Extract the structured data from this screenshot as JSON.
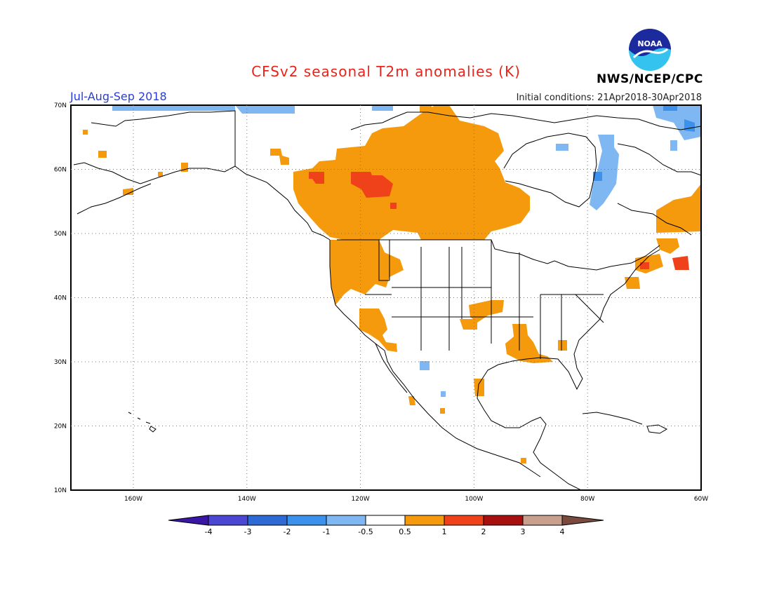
{
  "header": {
    "title": "CFSv2 seasonal T2m anomalies (K)",
    "season": "Jul-Aug-Sep 2018",
    "initial_conditions": "Initial conditions: 21Apr2018-30Apr2018",
    "agency": "NWS/NCEP/CPC",
    "logo_text": "NOAA"
  },
  "map": {
    "lon_range": [
      -171,
      -60
    ],
    "lat_range": [
      10,
      70
    ],
    "lat_labels": [
      "10N",
      "20N",
      "30N",
      "40N",
      "50N",
      "60N",
      "70N"
    ],
    "lon_labels": [
      "160W",
      "140W",
      "120W",
      "100W",
      "80W",
      "60W"
    ],
    "grid": true
  },
  "colorbar": {
    "tick_labels": [
      "-4",
      "-3",
      "-2",
      "-1",
      "-0.5",
      "0.5",
      "1",
      "2",
      "3",
      "4"
    ],
    "colors": [
      "#3a16a6",
      "#4b47d3",
      "#2e6ad6",
      "#3c91ec",
      "#7fb7f2",
      "#ffffff",
      "#f59a0c",
      "#f0421a",
      "#a80f0f",
      "#c9a08e",
      "#7a4a3e"
    ]
  },
  "anomaly_regions": [
    {
      "name": "canada-warm-main",
      "level": "0.5-1",
      "color": "#f59a0c"
    },
    {
      "name": "canada-warm-core",
      "level": "1-2",
      "color": "#f0421a"
    },
    {
      "name": "pacific-nw-warm",
      "level": "0.5-1",
      "color": "#f59a0c"
    },
    {
      "name": "southwest-warm",
      "level": "0.5-1",
      "color": "#f59a0c"
    },
    {
      "name": "gulf-coast-warm",
      "level": "0.5-1",
      "color": "#f59a0c"
    },
    {
      "name": "new-england-warm",
      "level": "0.5-1",
      "color": "#f59a0c"
    },
    {
      "name": "maritimes-warm",
      "level": "1-2",
      "color": "#f0421a"
    },
    {
      "name": "hudson-bay-cool",
      "level": "-1 to -0.5",
      "color": "#7fb7f2"
    },
    {
      "name": "arctic-coast-cool",
      "level": "-1 to -0.5",
      "color": "#7fb7f2"
    }
  ]
}
